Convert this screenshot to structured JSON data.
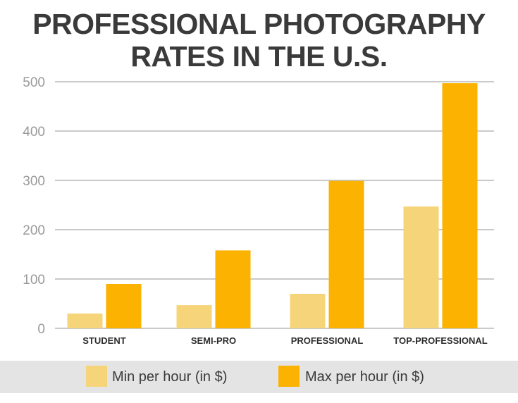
{
  "colors": {
    "min": "#f5d47a",
    "max": "#fbb200",
    "title": "#3a3a3a",
    "grid": "#b8b8b8",
    "tick": "#9a9a9a",
    "legend_bg": "#e4e4e4"
  },
  "chart_data": {
    "type": "bar",
    "title": "PROFESSIONAL PHOTOGRAPHY RATES IN THE U.S.",
    "title_lines": [
      "PROFESSIONAL PHOTOGRAPHY",
      "RATES IN THE U.S."
    ],
    "xlabel": "",
    "ylabel": "",
    "categories": [
      "STUDENT",
      "SEMI-PRO",
      "PROFESSIONAL",
      "TOP-PROFESSIONAL"
    ],
    "series": [
      {
        "name": "Min per hour (in $)",
        "values": [
          30,
          47,
          70,
          247
        ],
        "color": "#f5d47a"
      },
      {
        "name": "Max per hour (in $)",
        "values": [
          90,
          158,
          299,
          497
        ],
        "color": "#fbb200"
      }
    ],
    "ylim": [
      0,
      500
    ],
    "yticks": [
      0,
      100,
      200,
      300,
      400,
      500
    ],
    "grid": true,
    "legend_position": "bottom"
  }
}
